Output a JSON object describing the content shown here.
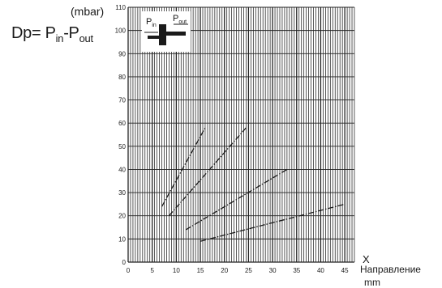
{
  "formula": {
    "lhs": "Dp= P",
    "sub_in": "in",
    "minus": "-P",
    "sub_out": "out"
  },
  "y_unit": "(mbar)",
  "x_axis": {
    "symbol": "X",
    "direction": "Направление",
    "unit": "mm"
  },
  "inset": {
    "p_in": "P",
    "p_in_sub": "in",
    "p_out": "P",
    "p_out_sub": "out"
  },
  "chart_data": {
    "type": "line",
    "xlim": [
      0,
      47
    ],
    "ylim": [
      0,
      110
    ],
    "x_ticks": [
      0,
      5,
      10,
      15,
      20,
      25,
      30,
      35,
      40,
      45
    ],
    "y_ticks": [
      0,
      10,
      20,
      30,
      40,
      50,
      60,
      70,
      80,
      90,
      100,
      110
    ],
    "x_tick_labels": [
      "0",
      "5",
      "10",
      "15",
      "20",
      "25",
      "30",
      "35",
      "40",
      "45"
    ],
    "y_tick_labels": [
      "0",
      "10",
      "20",
      "30",
      "40",
      "50",
      "60",
      "70",
      "80",
      "90",
      "100",
      "110"
    ],
    "grid": true,
    "series": [
      {
        "x": [
          7,
          16
        ],
        "y": [
          24,
          58
        ],
        "style": "dash-dot"
      },
      {
        "x": [
          8.5,
          24.5
        ],
        "y": [
          20,
          58
        ],
        "style": "dash-dot"
      },
      {
        "x": [
          12,
          33
        ],
        "y": [
          14,
          40
        ],
        "style": "dash-dot"
      },
      {
        "x": [
          15,
          45
        ],
        "y": [
          9,
          25
        ],
        "style": "dash-dot"
      }
    ],
    "colors": {
      "ink": "#1a1a1a",
      "grid": "#222222"
    }
  }
}
